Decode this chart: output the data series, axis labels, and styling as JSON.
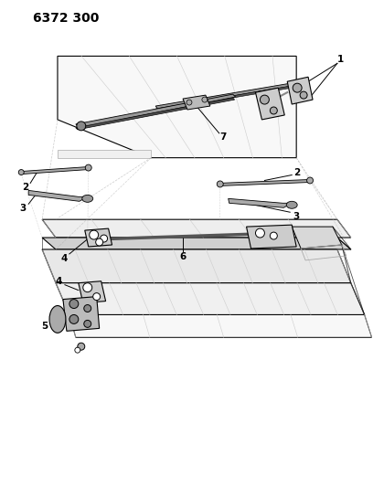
{
  "title": "6372 300",
  "bg_color": "#ffffff",
  "lc": "#000000",
  "gray_light": "#d8d8d8",
  "gray_mid": "#aaaaaa",
  "gray_dark": "#666666",
  "title_fontsize": 10,
  "label_fontsize": 7.5,
  "figsize": [
    4.08,
    5.33
  ],
  "dpi": 100
}
